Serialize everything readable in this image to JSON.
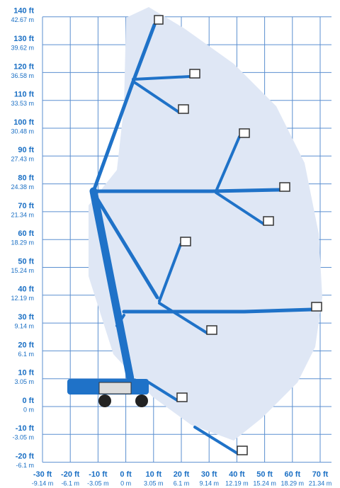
{
  "axes": {
    "y": [
      {
        "value": 140,
        "ft": "140 ft",
        "m": "42.67 m"
      },
      {
        "value": 130,
        "ft": "130 ft",
        "m": "39.62 m"
      },
      {
        "value": 120,
        "ft": "120 ft",
        "m": "36.58 m"
      },
      {
        "value": 110,
        "ft": "110 ft",
        "m": "33.53 m"
      },
      {
        "value": 100,
        "ft": "100 ft",
        "m": "30.48 m"
      },
      {
        "value": 90,
        "ft": "90 ft",
        "m": "27.43 m"
      },
      {
        "value": 80,
        "ft": "80 ft",
        "m": "24.38 m"
      },
      {
        "value": 70,
        "ft": "70 ft",
        "m": "21.34 m"
      },
      {
        "value": 60,
        "ft": "60 ft",
        "m": "18.29 m"
      },
      {
        "value": 50,
        "ft": "50 ft",
        "m": "15.24 m"
      },
      {
        "value": 40,
        "ft": "40 ft",
        "m": "12.19 m"
      },
      {
        "value": 30,
        "ft": "30 ft",
        "m": "9.14 m"
      },
      {
        "value": 20,
        "ft": "20 ft",
        "m": "6.1 m"
      },
      {
        "value": 10,
        "ft": "10 ft",
        "m": "3.05 m"
      },
      {
        "value": 0,
        "ft": "0 ft",
        "m": "0 m"
      },
      {
        "value": -10,
        "ft": "-10 ft",
        "m": "-3.05 m"
      },
      {
        "value": -20,
        "ft": "-20 ft",
        "m": "-6.1 m"
      }
    ],
    "x": [
      {
        "value": -30,
        "ft": "-30 ft",
        "m": "-9.14 m"
      },
      {
        "value": -20,
        "ft": "-20 ft",
        "m": "-6.1 m"
      },
      {
        "value": -10,
        "ft": "-10 ft",
        "m": "-3.05 m"
      },
      {
        "value": 0,
        "ft": "0 ft",
        "m": "0 m"
      },
      {
        "value": 10,
        "ft": "10 ft",
        "m": "3.05 m"
      },
      {
        "value": 20,
        "ft": "20 ft",
        "m": "6.1 m"
      },
      {
        "value": 30,
        "ft": "30 ft",
        "m": "9.14 m"
      },
      {
        "value": 40,
        "ft": "40 ft",
        "m": "12.19 m"
      },
      {
        "value": 50,
        "ft": "50 ft",
        "m": "15.24 m"
      },
      {
        "value": 60,
        "ft": "60 ft",
        "m": "18.29 m"
      },
      {
        "value": 70,
        "ft": "70 ft",
        "m": "21.34 m"
      }
    ]
  }
}
